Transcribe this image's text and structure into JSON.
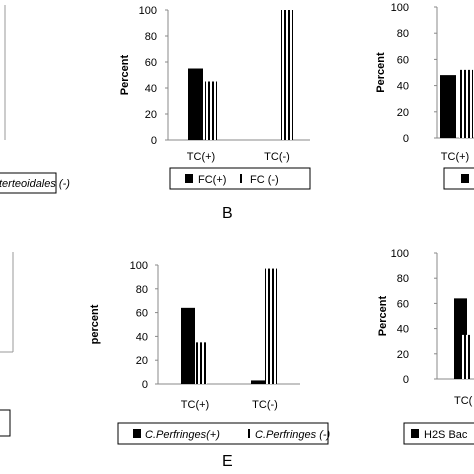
{
  "chart_data": [
    {
      "panel": "top-left-partial",
      "type": "bar",
      "legend": [
        "terteoidales (-)"
      ]
    },
    {
      "panel": "B",
      "type": "bar",
      "ylabel": "Percent",
      "ylim": [
        0,
        100
      ],
      "yticks": [
        "0",
        "20",
        "40",
        "60",
        "80",
        "100"
      ],
      "categories": [
        "TC(+)",
        "TC(-)"
      ],
      "series": [
        {
          "name": "FC(+)",
          "pattern": "solid",
          "values": [
            55,
            0
          ]
        },
        {
          "name": "FC (-)",
          "pattern": "striped",
          "values": [
            45,
            100
          ]
        }
      ],
      "legend_position": "bottom"
    },
    {
      "panel": "top-right-partial",
      "type": "bar",
      "ylabel": "Percent",
      "ylim": [
        0,
        100
      ],
      "yticks": [
        "0",
        "20",
        "40",
        "60",
        "80",
        "100"
      ],
      "categories": [
        "TC(+)"
      ],
      "series": [
        {
          "pattern": "solid",
          "values": [
            48
          ]
        },
        {
          "pattern": "striped",
          "values": [
            52
          ]
        }
      ]
    },
    {
      "panel": "E",
      "type": "bar",
      "ylabel": "percent",
      "ylim": [
        0,
        100
      ],
      "yticks": [
        "0",
        "20",
        "40",
        "60",
        "80",
        "100"
      ],
      "categories": [
        "TC(+)",
        "TC(-)"
      ],
      "series": [
        {
          "name": "C.Perfringes(+)",
          "pattern": "solid",
          "values": [
            64,
            3
          ]
        },
        {
          "name": "C.Perfringes (-)",
          "pattern": "striped",
          "values": [
            35,
            97
          ]
        }
      ],
      "legend_position": "bottom"
    },
    {
      "panel": "bottom-right-partial",
      "type": "bar",
      "ylabel": "Percent",
      "ylim": [
        0,
        100
      ],
      "yticks": [
        "0",
        "20",
        "40",
        "60",
        "80",
        "100"
      ],
      "categories": [
        "TC(+)"
      ],
      "series": [
        {
          "name": "H2S Bac",
          "pattern": "solid",
          "values": [
            64
          ]
        },
        {
          "pattern": "striped",
          "values": [
            35
          ]
        }
      ]
    }
  ],
  "labels": {
    "panel_b": "B",
    "panel_e": "E",
    "top_left_legend": "terteoidales (-)",
    "b_legend_1": "FC(+)",
    "b_legend_2": "FC (-)",
    "e_legend_1": "C.Perfringes(+)",
    "e_legend_2": "C.Perfringes (-)",
    "br_legend_1": "H2S Bac",
    "br_cat": "TC(",
    "tr_cat": "TC(+)"
  }
}
